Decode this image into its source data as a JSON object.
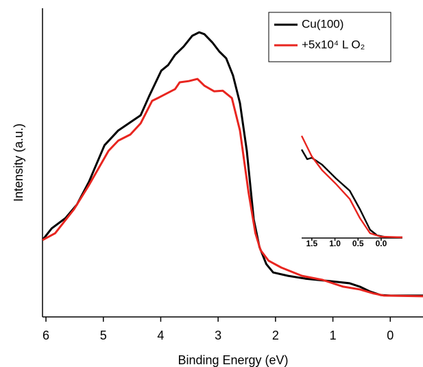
{
  "chart_data": [
    {
      "type": "line",
      "xlabel": "Binding Energy (eV)",
      "ylabel": "Intensity (a.u.)",
      "xlim": [
        6.06,
        -0.57
      ],
      "ylim": [
        0,
        100
      ],
      "xticks": [
        6,
        5,
        4,
        3,
        2,
        1,
        0
      ],
      "legend": "upper right",
      "series": [
        {
          "name": "Cu(100)",
          "color": "#000000",
          "x": [
            6.06,
            5.9,
            5.66,
            5.46,
            5.25,
            4.98,
            4.74,
            4.47,
            4.35,
            4.2,
            3.99,
            3.87,
            3.75,
            3.6,
            3.45,
            3.33,
            3.24,
            3.1,
            2.98,
            2.86,
            2.74,
            2.62,
            2.5,
            2.38,
            2.28,
            2.16,
            2.04,
            1.78,
            1.48,
            1.06,
            0.71,
            0.53,
            0.35,
            0.17,
            -0.01,
            -0.57
          ],
          "values": [
            24.9,
            28.7,
            32,
            36.4,
            43.8,
            55.6,
            60.4,
            63.8,
            65.3,
            71.6,
            79.8,
            81.6,
            84.9,
            87.6,
            91.1,
            92.2,
            91.6,
            88.9,
            86,
            83.8,
            78.2,
            69.3,
            53.8,
            31.6,
            22.7,
            17.1,
            14.4,
            13.3,
            12.4,
            11.6,
            10.9,
            9.8,
            8.2,
            7.1,
            6.9,
            6.9
          ]
        },
        {
          "name": "+5x10⁴ L O₂",
          "color": "#e8251f",
          "x": [
            6.06,
            5.84,
            5.51,
            5.25,
            4.91,
            4.74,
            4.53,
            4.35,
            4.15,
            4.03,
            3.75,
            3.67,
            3.51,
            3.36,
            3.24,
            3.07,
            2.92,
            2.76,
            2.62,
            2.47,
            2.35,
            2.26,
            2.12,
            1.9,
            1.54,
            1.18,
            0.82,
            0.53,
            0.29,
            0.11,
            -0.57
          ],
          "values": [
            24.9,
            27.1,
            34.9,
            42.7,
            53.8,
            57.1,
            59.1,
            62.7,
            70,
            71.1,
            73.8,
            76,
            76.4,
            77.1,
            74.9,
            73.1,
            73.3,
            70.9,
            60.4,
            40.4,
            27.1,
            21.6,
            18.2,
            16,
            13.3,
            12,
            9.8,
            8.9,
            7.6,
            6.9,
            6.7
          ]
        }
      ]
    },
    {
      "type": "line",
      "xlim": [
        1.72,
        -0.46
      ],
      "ylim": [
        0,
        150
      ],
      "xticks": [
        1.5,
        {
          "value": 1,
          "label": "1.0"
        },
        0.5,
        {
          "value": 0,
          "label": "0.0"
        }
      ],
      "series": [
        {
          "color": "#000000",
          "x": [
            1.72,
            1.6,
            1.5,
            1.28,
            0.98,
            0.68,
            0.46,
            0.24,
            0.09,
            -0.13,
            -0.46
          ],
          "values": [
            129,
            115,
            117,
            107,
            87,
            69,
            42,
            12,
            4,
            1,
            1
          ]
        },
        {
          "color": "#e8251f",
          "x": [
            1.72,
            1.5,
            1.28,
            0.98,
            0.68,
            0.46,
            0.24,
            0.01,
            -0.46
          ],
          "values": [
            149,
            119,
            99,
            79,
            57,
            29,
            7,
            2,
            1
          ]
        }
      ]
    }
  ]
}
